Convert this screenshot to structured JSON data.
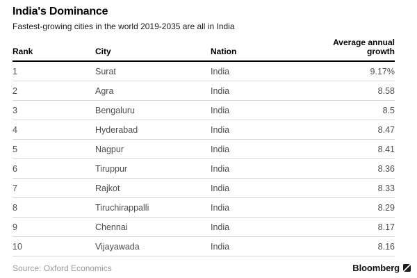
{
  "header": {
    "title": "India's Dominance",
    "subtitle": "Fastest-growing cities in the world 2019-2035 are all in India"
  },
  "table": {
    "columns": [
      "Rank",
      "City",
      "Nation",
      "Average annual growth"
    ],
    "rows": [
      {
        "rank": "1",
        "city": "Surat",
        "nation": "India",
        "growth": "9.17%"
      },
      {
        "rank": "2",
        "city": "Agra",
        "nation": "India",
        "growth": "8.58"
      },
      {
        "rank": "3",
        "city": "Bengaluru",
        "nation": "India",
        "growth": "8.5"
      },
      {
        "rank": "4",
        "city": "Hyderabad",
        "nation": "India",
        "growth": "8.47"
      },
      {
        "rank": "5",
        "city": "Nagpur",
        "nation": "India",
        "growth": "8.41"
      },
      {
        "rank": "6",
        "city": "Tiruppur",
        "nation": "India",
        "growth": "8.36"
      },
      {
        "rank": "7",
        "city": "Rajkot",
        "nation": "India",
        "growth": "8.33"
      },
      {
        "rank": "8",
        "city": "Tiruchirappalli",
        "nation": "India",
        "growth": "8.29"
      },
      {
        "rank": "9",
        "city": "Chennai",
        "nation": "India",
        "growth": "8.17"
      },
      {
        "rank": "10",
        "city": "Vijayawada",
        "nation": "India",
        "growth": "8.16"
      }
    ]
  },
  "footer": {
    "source": "Source: Oxford Economics",
    "brand": "Bloomberg"
  },
  "colors": {
    "background": "#ffffff",
    "title_text": "#000000",
    "body_text": "#4d4d4d",
    "header_rule": "#000000",
    "row_separator": "#d8d8d8",
    "source_text": "#9a9a9a"
  },
  "chart_data": {
    "type": "table",
    "title": "India's Dominance",
    "subtitle": "Fastest-growing cities in the world 2019-2035 are all in India",
    "columns": [
      "Rank",
      "City",
      "Nation",
      "Average annual growth"
    ],
    "categories": [
      "Surat",
      "Agra",
      "Bengaluru",
      "Hyderabad",
      "Nagpur",
      "Tiruppur",
      "Rajkot",
      "Tiruchirappalli",
      "Chennai",
      "Vijayawada"
    ],
    "series": [
      {
        "name": "Average annual growth (%)",
        "values": [
          9.17,
          8.58,
          8.5,
          8.47,
          8.41,
          8.36,
          8.33,
          8.29,
          8.17,
          8.16
        ]
      }
    ],
    "nation": "India",
    "units": "percent",
    "source": "Oxford Economics"
  }
}
